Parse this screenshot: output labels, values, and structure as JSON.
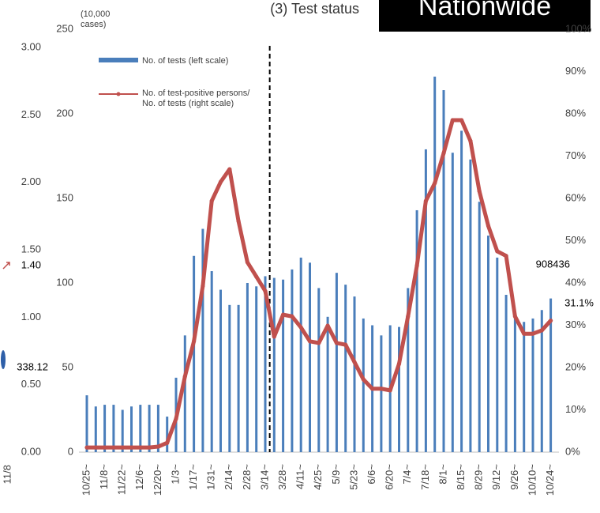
{
  "chart_data": [
    {
      "type": "bar_line",
      "title": "(3) Test status",
      "badge": "Nationwide",
      "y_unit": "(10,000 cases)",
      "categories": [
        "10/25~",
        null,
        "11/8~",
        null,
        "11/22~",
        null,
        "12/6~",
        null,
        "12/20~",
        null,
        "1/3~",
        null,
        "1/17~",
        null,
        "1/31~",
        null,
        "2/14~",
        null,
        "2/28~",
        null,
        "3/14~",
        null,
        "3/28~",
        null,
        "4/11~",
        null,
        "4/25~",
        null,
        "5/9~",
        null,
        "5/23~",
        null,
        "6/6~",
        null,
        "6/20~",
        null,
        "7/4~",
        null,
        "7/18~",
        null,
        "8/1~",
        null,
        "8/15~",
        null,
        "8/29~",
        null,
        "9/12~",
        null,
        "9/26~",
        null,
        "10/10~",
        null,
        "10/24~"
      ],
      "series": [
        {
          "name": "No. of tests (left scale)",
          "color": "#4a7ebb",
          "kind": "bar",
          "axis": "y",
          "values": [
            33.6,
            27,
            28,
            28,
            25,
            27,
            28,
            28,
            28,
            21,
            44,
            69,
            116,
            132,
            107,
            96,
            87,
            87,
            100,
            98,
            104,
            103,
            102,
            108,
            115,
            112,
            97,
            80,
            106,
            99,
            92,
            79,
            75,
            69,
            75,
            74,
            97,
            143,
            179,
            222,
            214,
            177,
            190,
            173,
            148,
            128,
            115,
            93,
            81,
            77,
            79,
            84,
            90.8436
          ],
          "value_labels": [
            null,
            null,
            null,
            null,
            null,
            null,
            null,
            null,
            null,
            null,
            null,
            null,
            null,
            null,
            null,
            null,
            null,
            null,
            null,
            null,
            null,
            null,
            null,
            null,
            null,
            null,
            null,
            null,
            null,
            null,
            null,
            null,
            null,
            null,
            null,
            null,
            null,
            null,
            null,
            null,
            null,
            null,
            null,
            null,
            null,
            null,
            null,
            null,
            null,
            null,
            null,
            null,
            "908436"
          ]
        },
        {
          "name": "No. of test-positive persons/ No. of tests (right scale)",
          "color": "#c0504d",
          "kind": "line",
          "axis": "y2",
          "values": [
            1.1,
            1.1,
            1.1,
            1.1,
            1.1,
            1.1,
            1.1,
            1.1,
            1.3,
            2.2,
            7.9,
            17.9,
            26.2,
            39.3,
            59.4,
            63.9,
            66.9,
            54.6,
            44.9,
            41.5,
            38.1,
            27.3,
            32.5,
            32.1,
            29.5,
            26.2,
            25.8,
            29.9,
            25.8,
            25.4,
            21.3,
            17.2,
            15,
            15,
            14.6,
            20.9,
            32.1,
            44.1,
            59.4,
            63.6,
            70.7,
            78.5,
            78.5,
            73.6,
            61.7,
            53.5,
            47.5,
            46.4,
            32.1,
            28,
            28,
            28.8,
            31.1
          ],
          "value_labels": [
            null,
            null,
            null,
            null,
            null,
            null,
            null,
            null,
            null,
            null,
            null,
            null,
            null,
            null,
            null,
            null,
            null,
            null,
            null,
            null,
            null,
            null,
            null,
            null,
            null,
            null,
            null,
            null,
            null,
            null,
            null,
            null,
            null,
            null,
            null,
            null,
            null,
            null,
            null,
            null,
            null,
            null,
            null,
            null,
            null,
            null,
            null,
            null,
            null,
            null,
            null,
            null,
            "31.1%"
          ]
        }
      ],
      "ylim": [
        0,
        250
      ],
      "yticks": [
        0,
        50,
        100,
        150,
        200,
        250
      ],
      "y2lim": [
        0,
        100
      ],
      "y2ticks": [
        {
          "value": 0,
          "label": "0%"
        },
        {
          "value": 10,
          "label": "10%"
        },
        {
          "value": 20,
          "label": "20%"
        },
        {
          "value": 30,
          "label": "30%"
        },
        {
          "value": 40,
          "label": "40%"
        },
        {
          "value": 50,
          "label": "50%"
        },
        {
          "value": 60,
          "label": "60%"
        },
        {
          "value": 70,
          "label": "70%"
        },
        {
          "value": 80,
          "label": "80%"
        },
        {
          "value": 90,
          "label": "90%"
        },
        {
          "value": 100,
          "label": "100%"
        }
      ],
      "grid": false
    },
    {
      "type": "fragment",
      "ylim": [
        0,
        3
      ],
      "yticks": [
        {
          "value": 0,
          "label": "0.00"
        },
        {
          "value": 0.5,
          "label": "0.50"
        },
        {
          "value": 1,
          "label": "1.00"
        },
        {
          "value": 1.5,
          "label": "1.50"
        },
        {
          "value": 2,
          "label": "2.00"
        },
        {
          "value": 2.5,
          "label": "2.50"
        },
        {
          "value": 3,
          "label": "3.00"
        }
      ],
      "annotations": [
        "1.40",
        "338.12"
      ],
      "categories": [
        "11/8"
      ]
    }
  ]
}
